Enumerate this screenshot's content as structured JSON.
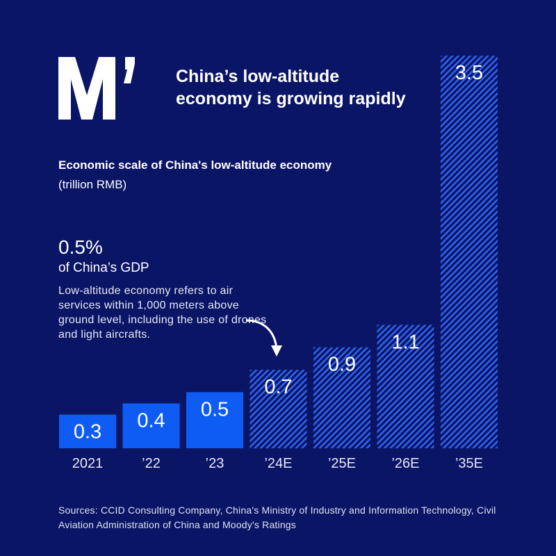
{
  "logo_text": "M’",
  "title_lines": [
    "China’s low-altitude",
    "economy is growing rapidly"
  ],
  "subtitle": "Economic scale of China's low-altitude economy",
  "unit": "(trillion RMB)",
  "annotation": {
    "value": "0.5%",
    "label": "of China’s GDP",
    "note": "Low-altitude economy refers to air services within 1,000 meters above ground level, including the use of drones and light aircrafts."
  },
  "source": "Sources: CCID Consulting Company, China's Ministry of Industry and Information Technology, Civil Aviation Administration of China and Moody's Ratings",
  "colors": {
    "background": "#0b1566",
    "actual": "#0f5cf5",
    "estimate_hatch": "#2f66f0"
  },
  "chart_data": {
    "type": "bar",
    "title": "Economic scale of China's low-altitude economy",
    "ylabel": "(trillion RMB)",
    "categories": [
      "2021",
      "’22",
      "’23",
      "’24E",
      "’25E",
      "’26E",
      "’35E"
    ],
    "values": [
      0.3,
      0.4,
      0.5,
      0.7,
      0.9,
      1.1,
      3.5
    ],
    "value_labels": [
      "0.3",
      "0.4",
      "0.5",
      "0.7",
      "0.9",
      "1.1",
      "3.5"
    ],
    "estimate": [
      false,
      false,
      false,
      true,
      true,
      true,
      true
    ],
    "ylim": [
      0,
      3.5
    ],
    "grid": false
  }
}
